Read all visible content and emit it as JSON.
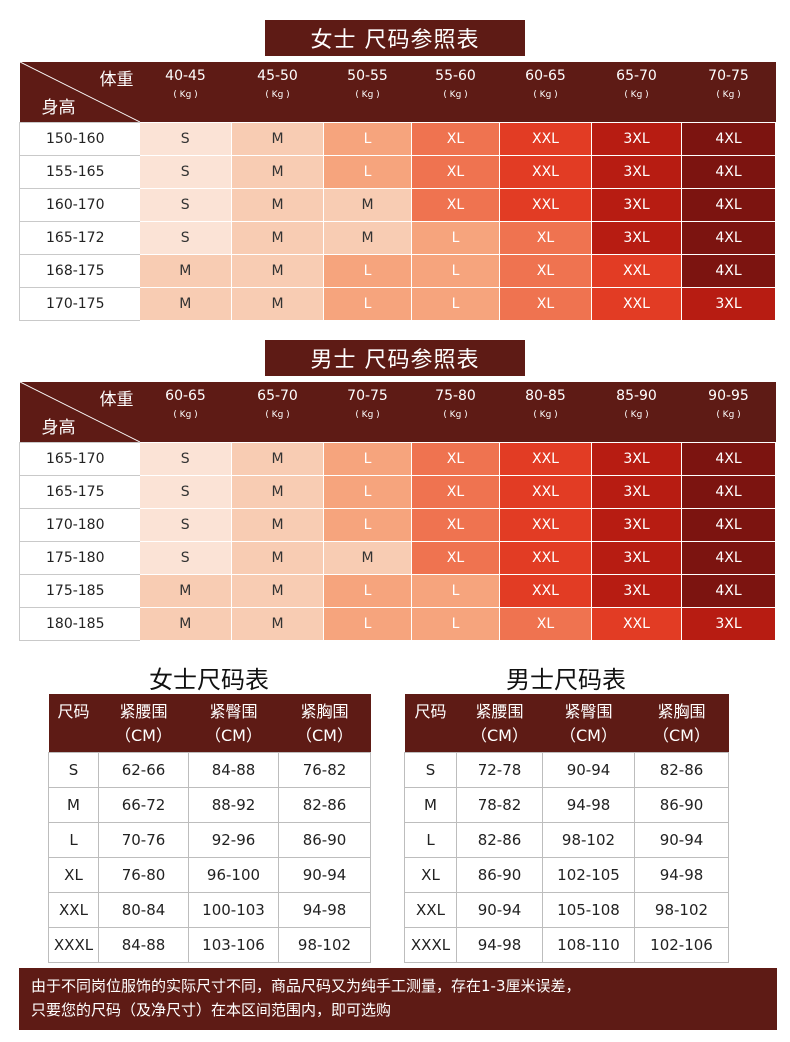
{
  "women_chart": {
    "title": "女士 尺码参照表",
    "corner_weight": "体重",
    "corner_height": "身高",
    "weights": [
      "40-45",
      "45-50",
      "50-55",
      "55-60",
      "60-65",
      "65-70",
      "70-75"
    ],
    "unit": "( Kg )",
    "rows": [
      {
        "height": "150-160",
        "sizes": [
          "S",
          "M",
          "L",
          "XL",
          "XXL",
          "3XL",
          "4XL"
        ]
      },
      {
        "height": "155-165",
        "sizes": [
          "S",
          "M",
          "L",
          "XL",
          "XXL",
          "3XL",
          "4XL"
        ]
      },
      {
        "height": "160-170",
        "sizes": [
          "S",
          "M",
          "M",
          "XL",
          "XXL",
          "3XL",
          "4XL"
        ]
      },
      {
        "height": "165-172",
        "sizes": [
          "S",
          "M",
          "M",
          "L",
          "XL",
          "3XL",
          "4XL"
        ]
      },
      {
        "height": "168-175",
        "sizes": [
          "M",
          "M",
          "L",
          "L",
          "XL",
          "XXL",
          "4XL"
        ]
      },
      {
        "height": "170-175",
        "sizes": [
          "M",
          "M",
          "L",
          "L",
          "XL",
          "XXL",
          "3XL"
        ]
      }
    ]
  },
  "men_chart": {
    "title": "男士 尺码参照表",
    "corner_weight": "体重",
    "corner_height": "身高",
    "weights": [
      "60-65",
      "65-70",
      "70-75",
      "75-80",
      "80-85",
      "85-90",
      "90-95"
    ],
    "unit": "( Kg )",
    "rows": [
      {
        "height": "165-170",
        "sizes": [
          "S",
          "M",
          "L",
          "XL",
          "XXL",
          "3XL",
          "4XL"
        ]
      },
      {
        "height": "165-175",
        "sizes": [
          "S",
          "M",
          "L",
          "XL",
          "XXL",
          "3XL",
          "4XL"
        ]
      },
      {
        "height": "170-180",
        "sizes": [
          "S",
          "M",
          "L",
          "XL",
          "XXL",
          "3XL",
          "4XL"
        ]
      },
      {
        "height": "175-180",
        "sizes": [
          "S",
          "M",
          "M",
          "XL",
          "XXL",
          "3XL",
          "4XL"
        ]
      },
      {
        "height": "175-185",
        "sizes": [
          "M",
          "M",
          "L",
          "L",
          "XXL",
          "3XL",
          "4XL"
        ]
      },
      {
        "height": "180-185",
        "sizes": [
          "M",
          "M",
          "L",
          "L",
          "XL",
          "XXL",
          "3XL"
        ]
      }
    ]
  },
  "size_colors": {
    "S": "#fbe3d6",
    "M": "#f8ccb3",
    "L": "#f6a47d",
    "XL": "#ef7350",
    "XXL": "#e23c24",
    "3XL": "#b71c12",
    "4XL": "#7c1410"
  },
  "women_measure": {
    "title": "女士尺码表",
    "headers": [
      [
        "尺码",
        ""
      ],
      [
        "紧腰围",
        "（CM）"
      ],
      [
        "紧臀围",
        "（CM）"
      ],
      [
        "紧胸围",
        "（CM）"
      ]
    ],
    "rows": [
      [
        "S",
        "62-66",
        "84-88",
        "76-82"
      ],
      [
        "M",
        "66-72",
        "88-92",
        "82-86"
      ],
      [
        "L",
        "70-76",
        "92-96",
        "86-90"
      ],
      [
        "XL",
        "76-80",
        "96-100",
        "90-94"
      ],
      [
        "XXL",
        "80-84",
        "100-103",
        "94-98"
      ],
      [
        "XXXL",
        "84-88",
        "103-106",
        "98-102"
      ]
    ]
  },
  "men_measure": {
    "title": "男士尺码表",
    "headers": [
      [
        "尺码",
        ""
      ],
      [
        "紧腰围",
        "（CM）"
      ],
      [
        "紧臀围",
        "（CM）"
      ],
      [
        "紧胸围",
        "（CM）"
      ]
    ],
    "rows": [
      [
        "S",
        "72-78",
        "90-94",
        "82-86"
      ],
      [
        "M",
        "78-82",
        "94-98",
        "86-90"
      ],
      [
        "L",
        "82-86",
        "98-102",
        "90-94"
      ],
      [
        "XL",
        "86-90",
        "102-105",
        "94-98"
      ],
      [
        "XXL",
        "90-94",
        "105-108",
        "98-102"
      ],
      [
        "XXXL",
        "94-98",
        "108-110",
        "102-106"
      ]
    ]
  },
  "note": {
    "line1": "由于不同岗位服饰的实际尺寸不同，商品尺码又为纯手工测量，存在1-3厘米误差，",
    "line2": "只要您的尺码（及净尺寸）在本区间范围内，即可选购"
  }
}
